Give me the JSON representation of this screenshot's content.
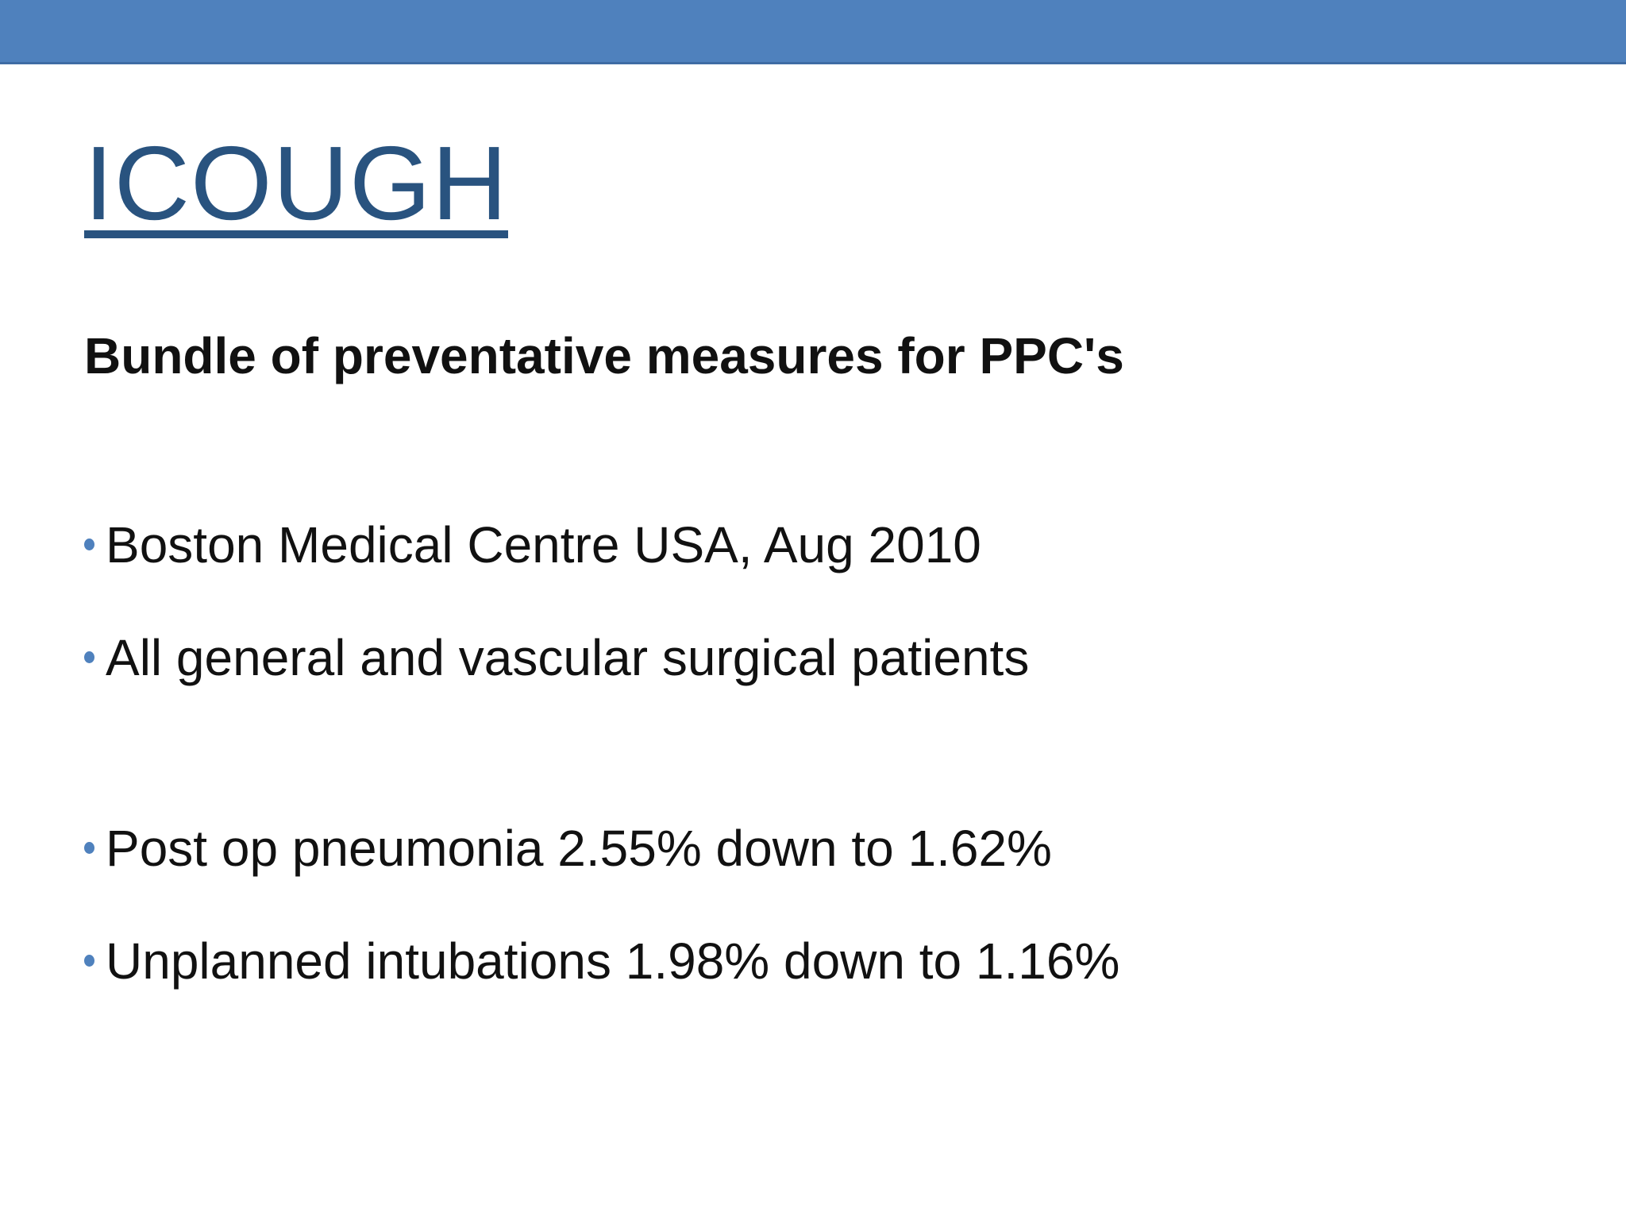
{
  "slide": {
    "title": "ICOUGH",
    "subtitle": "Bundle of preventative measures for PPC's",
    "bullets": [
      {
        "text": "Boston Medical Centre USA, Aug 2010"
      },
      {
        "text": "All general and vascular surgical patients"
      },
      {
        "text": "Post op pneumonia 2.55% down to 1.62%"
      },
      {
        "text": "Unplanned intubations 1.98% down to 1.16%"
      }
    ],
    "colors": {
      "top_bar": "#4F81BD",
      "top_bar_edge": "#3E6CA4",
      "title": "#29537F",
      "bullet_dot": "#4F81BD",
      "body_text": "#111111"
    }
  }
}
